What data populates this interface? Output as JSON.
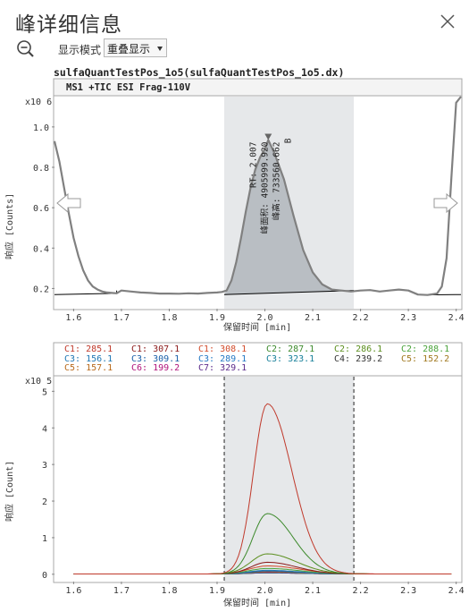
{
  "window": {
    "title": "峰详细信息"
  },
  "toolbar": {
    "mode_label": "显示模式",
    "mode_value": "重叠显示"
  },
  "file_title": "sulfaQuantTestPos_1o5(sulfaQuantTestPos_1o5.dx)",
  "colors": {
    "tic_line": "#808080",
    "peak_fill": "#b9bec3",
    "highlight": "#e6e8ea",
    "baseline": "#000000",
    "C1_285": "#c0392b",
    "C1_307": "#8b1a1a",
    "C1_308": "#d24b2a",
    "C2_287": "#3d8a2c",
    "C2_286": "#5c8f1f",
    "C2_288": "#4aa33a",
    "C3_156": "#1f77b4",
    "C3_309": "#1a5fa8",
    "C3_289": "#2478c4",
    "C3_323": "#18809a",
    "C4_239": "#333333",
    "C5_152": "#a0781e",
    "C5_157": "#b8691a",
    "C6_199": "#b0127a",
    "C7_329": "#5b2a8a"
  },
  "chart_data": [
    {
      "type": "line",
      "header": "MS1 +TIC ESI Frag-110V",
      "y_multiplier": "x10 6",
      "ylabel": "响应 [Counts]",
      "xlabel": "保留时间 [min]",
      "xlim": [
        1.56,
        2.41
      ],
      "ylim": [
        0.1,
        1.15
      ],
      "x_ticks": [
        1.6,
        1.7,
        1.8,
        1.9,
        2.0,
        2.1,
        2.2,
        2.3,
        2.4
      ],
      "y_ticks": [
        0.2,
        0.4,
        0.6,
        0.8,
        1.0
      ],
      "highlight_range": [
        1.915,
        2.186
      ],
      "peak_annotation": {
        "rt": "RT: 2.007",
        "area": "峰面积: 4905999.920",
        "height": "峰高: 733560.662",
        "label": "B",
        "apex_x": 2.007,
        "apex_y": 0.935
      },
      "series": [
        {
          "x": [
            1.56,
            1.57,
            1.58,
            1.59,
            1.6,
            1.61,
            1.62,
            1.63,
            1.64,
            1.65,
            1.66,
            1.67,
            1.68,
            1.69,
            1.7,
            1.72,
            1.74,
            1.76,
            1.78,
            1.8,
            1.82,
            1.84,
            1.86,
            1.88,
            1.9,
            1.91,
            1.92,
            1.93,
            1.94,
            1.95,
            1.96,
            1.97,
            1.98,
            1.99,
            2.0,
            2.007,
            2.02,
            2.04,
            2.06,
            2.08,
            2.1,
            2.12,
            2.14,
            2.16,
            2.18,
            2.2,
            2.22,
            2.24,
            2.26,
            2.28,
            2.3,
            2.32,
            2.34,
            2.36,
            2.37,
            2.38,
            2.39,
            2.4,
            2.41
          ],
          "y": [
            0.93,
            0.83,
            0.7,
            0.57,
            0.45,
            0.36,
            0.29,
            0.24,
            0.21,
            0.195,
            0.185,
            0.18,
            0.178,
            0.176,
            0.19,
            0.185,
            0.18,
            0.178,
            0.175,
            0.175,
            0.174,
            0.176,
            0.175,
            0.178,
            0.18,
            0.183,
            0.19,
            0.24,
            0.33,
            0.45,
            0.58,
            0.7,
            0.79,
            0.85,
            0.89,
            0.935,
            0.87,
            0.74,
            0.56,
            0.39,
            0.28,
            0.22,
            0.195,
            0.19,
            0.185,
            0.19,
            0.192,
            0.185,
            0.19,
            0.195,
            0.19,
            0.17,
            0.168,
            0.175,
            0.21,
            0.35,
            0.75,
            1.12,
            1.15
          ]
        }
      ]
    },
    {
      "type": "line",
      "y_multiplier": "x10 5",
      "ylabel": "响应 [Count]",
      "xlabel": "保留时间 [min]",
      "xlim": [
        1.56,
        2.41
      ],
      "ylim": [
        -0.2,
        5.4
      ],
      "x_ticks": [
        1.6,
        1.7,
        1.8,
        1.9,
        2.0,
        2.1,
        2.2,
        2.3,
        2.4
      ],
      "y_ticks": [
        0,
        1,
        2,
        3,
        4,
        5
      ],
      "highlight_range": [
        1.915,
        2.186
      ],
      "legend": [
        {
          "label": "C1: 285.1",
          "color_key": "C1_285"
        },
        {
          "label": "C1: 307.1",
          "color_key": "C1_307"
        },
        {
          "label": "C1: 308.1",
          "color_key": "C1_308"
        },
        {
          "label": "C2: 287.1",
          "color_key": "C2_287"
        },
        {
          "label": "C2: 286.1",
          "color_key": "C2_286"
        },
        {
          "label": "C2: 288.1",
          "color_key": "C2_288"
        },
        {
          "label": "C3: 156.1",
          "color_key": "C3_156"
        },
        {
          "label": "C3: 309.1",
          "color_key": "C3_309"
        },
        {
          "label": "C3: 289.1",
          "color_key": "C3_289"
        },
        {
          "label": "C3: 323.1",
          "color_key": "C3_323"
        },
        {
          "label": "C4: 239.2",
          "color_key": "C4_239"
        },
        {
          "label": "C5: 152.2",
          "color_key": "C5_152"
        },
        {
          "label": "C5: 157.1",
          "color_key": "C5_157"
        },
        {
          "label": "C6: 199.2",
          "color_key": "C6_199"
        },
        {
          "label": "C7: 329.1",
          "color_key": "C7_329"
        }
      ],
      "series": [
        {
          "color_key": "C1_285",
          "peak": 4.65,
          "width": 0.038
        },
        {
          "color_key": "C2_287",
          "peak": 1.65,
          "width": 0.04
        },
        {
          "color_key": "C2_286",
          "peak": 0.55,
          "width": 0.045
        },
        {
          "color_key": "C1_307",
          "peak": 0.32,
          "width": 0.045
        },
        {
          "color_key": "C1_308",
          "peak": 0.22,
          "width": 0.05
        },
        {
          "color_key": "C2_288",
          "peak": 0.15,
          "width": 0.05
        },
        {
          "color_key": "C3_156",
          "peak": 0.1,
          "width": 0.05
        },
        {
          "color_key": "C3_309",
          "peak": 0.08,
          "width": 0.05
        },
        {
          "color_key": "C5_152",
          "peak": 0.06,
          "width": 0.05
        },
        {
          "color_key": "C6_199",
          "peak": 0.05,
          "width": 0.06
        },
        {
          "color_key": "C3_289",
          "peak": 0.04,
          "width": 0.05
        },
        {
          "color_key": "C3_323",
          "peak": 0.05,
          "width": 0.05
        },
        {
          "color_key": "C4_239",
          "peak": 0.03,
          "width": 0.05
        },
        {
          "color_key": "C5_157",
          "peak": 0.04,
          "width": 0.05
        },
        {
          "color_key": "C7_329",
          "peak": 0.03,
          "width": 0.05
        }
      ],
      "center": 2.005
    }
  ]
}
